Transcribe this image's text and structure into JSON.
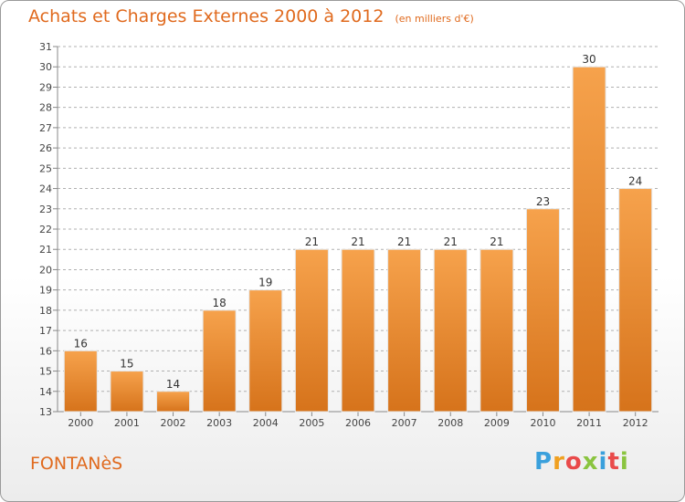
{
  "header": {
    "title": "Achats et Charges Externes 2000 à 2012",
    "subtitle": "(en milliers d'€)"
  },
  "footer": {
    "commune": "FONTANèS",
    "brand": {
      "letters": [
        "P",
        "r",
        "o",
        "x",
        "i",
        "t",
        "i"
      ],
      "colors": [
        "#3aa0dc",
        "#f0a020",
        "#e94a4a",
        "#8ac43f",
        "#3aa0dc",
        "#e94a4a",
        "#8ac43f"
      ]
    }
  },
  "colors": {
    "accent": "#e06a1e",
    "bar_light": "#f6a04a",
    "bar_dark": "#d8741c",
    "grid": "#b0b0b0"
  },
  "chart_data": {
    "type": "bar",
    "title": "Achats et Charges Externes 2000 à 2012",
    "subtitle": "(en milliers d'€)",
    "categories": [
      "2000",
      "2001",
      "2002",
      "2003",
      "2004",
      "2005",
      "2006",
      "2007",
      "2008",
      "2009",
      "2010",
      "2011",
      "2012"
    ],
    "values": [
      16,
      15,
      14,
      18,
      19,
      21,
      21,
      21,
      21,
      21,
      23,
      30,
      24
    ],
    "ylim": [
      13,
      31
    ],
    "yticks": [
      13,
      14,
      15,
      16,
      17,
      18,
      19,
      20,
      21,
      22,
      23,
      24,
      25,
      26,
      27,
      28,
      29,
      30,
      31
    ],
    "grid": true,
    "grid_style": "dashed-horizontal",
    "xlabel": "",
    "ylabel": ""
  }
}
